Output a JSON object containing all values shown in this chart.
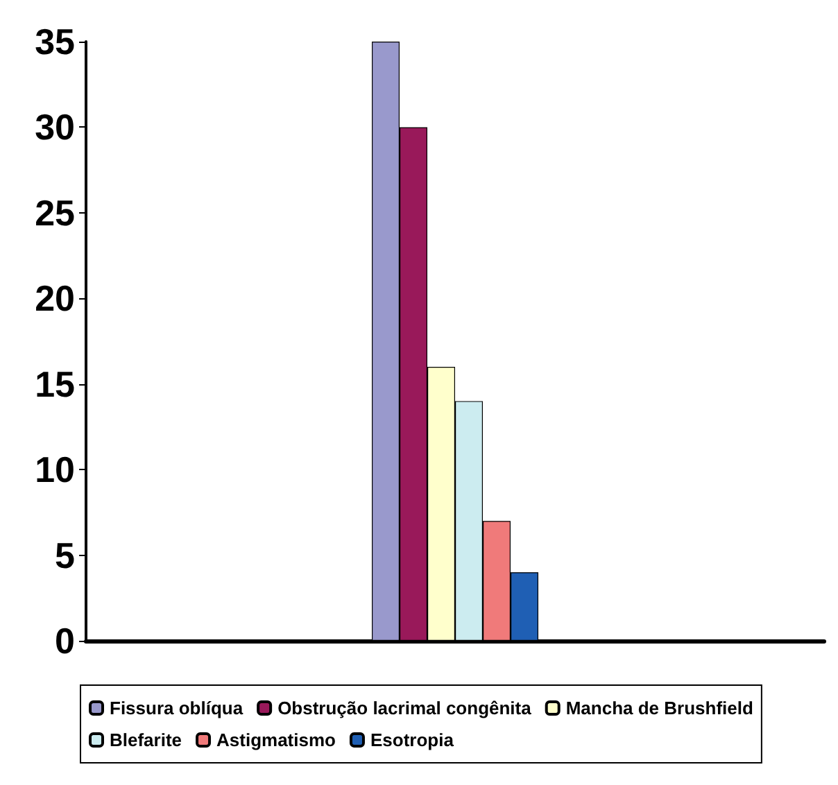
{
  "chart_data": {
    "type": "bar",
    "categories": [
      null
    ],
    "series": [
      {
        "name": "Fissura oblíqua",
        "color": "#9999cc",
        "values": [
          35
        ]
      },
      {
        "name": "Obstrução lacrimal congênita",
        "color": "#99195a",
        "values": [
          30
        ]
      },
      {
        "name": "Mancha de Brushfield",
        "color": "#ffffcc",
        "values": [
          16
        ]
      },
      {
        "name": "Blefarite",
        "color": "#ccecf0",
        "values": [
          14
        ]
      },
      {
        "name": "Astigmatismo",
        "color": "#f07a7a",
        "values": [
          7
        ]
      },
      {
        "name": "Esotropia",
        "color": "#1f5fb4",
        "values": [
          4
        ]
      }
    ],
    "ylim": [
      0,
      35
    ],
    "yticks": [
      0,
      5,
      10,
      15,
      20,
      25,
      30,
      35
    ],
    "grid": false,
    "legend": "bottom"
  }
}
